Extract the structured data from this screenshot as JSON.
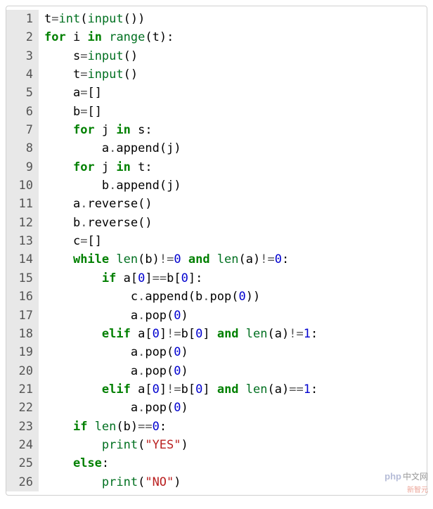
{
  "editor": {
    "background": "#ffffff",
    "gutter_background": "#e8e8e8",
    "gutter_color": "#555555",
    "font_family": "Menlo, Monaco, Consolas, monospace",
    "font_size_pt": 13,
    "colors": {
      "keyword": "#008000",
      "builtin": "#007020",
      "operator": "#555555",
      "number": "#0000cf",
      "string": "#ba2121",
      "default": "#000000"
    },
    "lines": [
      {
        "n": "1",
        "indent": 0,
        "tokens": [
          [
            "name",
            "t"
          ],
          [
            "op",
            "="
          ],
          [
            "builtin",
            "int"
          ],
          [
            "paren",
            "("
          ],
          [
            "builtin",
            "input"
          ],
          [
            "paren",
            "("
          ],
          [
            "paren",
            ")"
          ],
          [
            "paren",
            ")"
          ]
        ]
      },
      {
        "n": "2",
        "indent": 0,
        "tokens": [
          [
            "kw",
            "for"
          ],
          [
            "space",
            " "
          ],
          [
            "name",
            "i"
          ],
          [
            "space",
            " "
          ],
          [
            "kw",
            "in"
          ],
          [
            "space",
            " "
          ],
          [
            "builtin",
            "range"
          ],
          [
            "paren",
            "("
          ],
          [
            "name",
            "t"
          ],
          [
            "paren",
            ")"
          ],
          [
            "punct",
            ":"
          ]
        ]
      },
      {
        "n": "3",
        "indent": 1,
        "tokens": [
          [
            "name",
            "s"
          ],
          [
            "op",
            "="
          ],
          [
            "builtin",
            "input"
          ],
          [
            "paren",
            "("
          ],
          [
            "paren",
            ")"
          ]
        ]
      },
      {
        "n": "4",
        "indent": 1,
        "tokens": [
          [
            "name",
            "t"
          ],
          [
            "op",
            "="
          ],
          [
            "builtin",
            "input"
          ],
          [
            "paren",
            "("
          ],
          [
            "paren",
            ")"
          ]
        ]
      },
      {
        "n": "5",
        "indent": 1,
        "tokens": [
          [
            "name",
            "a"
          ],
          [
            "op",
            "="
          ],
          [
            "paren",
            "["
          ],
          [
            "paren",
            "]"
          ]
        ]
      },
      {
        "n": "6",
        "indent": 1,
        "tokens": [
          [
            "name",
            "b"
          ],
          [
            "op",
            "="
          ],
          [
            "paren",
            "["
          ],
          [
            "paren",
            "]"
          ]
        ]
      },
      {
        "n": "7",
        "indent": 1,
        "tokens": [
          [
            "kw",
            "for"
          ],
          [
            "space",
            " "
          ],
          [
            "name",
            "j"
          ],
          [
            "space",
            " "
          ],
          [
            "kw",
            "in"
          ],
          [
            "space",
            " "
          ],
          [
            "name",
            "s"
          ],
          [
            "punct",
            ":"
          ]
        ]
      },
      {
        "n": "8",
        "indent": 2,
        "tokens": [
          [
            "name",
            "a"
          ],
          [
            "op",
            "."
          ],
          [
            "name",
            "append"
          ],
          [
            "paren",
            "("
          ],
          [
            "name",
            "j"
          ],
          [
            "paren",
            ")"
          ]
        ]
      },
      {
        "n": "9",
        "indent": 1,
        "tokens": [
          [
            "kw",
            "for"
          ],
          [
            "space",
            " "
          ],
          [
            "name",
            "j"
          ],
          [
            "space",
            " "
          ],
          [
            "kw",
            "in"
          ],
          [
            "space",
            " "
          ],
          [
            "name",
            "t"
          ],
          [
            "punct",
            ":"
          ]
        ]
      },
      {
        "n": "10",
        "indent": 2,
        "tokens": [
          [
            "name",
            "b"
          ],
          [
            "op",
            "."
          ],
          [
            "name",
            "append"
          ],
          [
            "paren",
            "("
          ],
          [
            "name",
            "j"
          ],
          [
            "paren",
            ")"
          ]
        ]
      },
      {
        "n": "11",
        "indent": 1,
        "tokens": [
          [
            "name",
            "a"
          ],
          [
            "op",
            "."
          ],
          [
            "name",
            "reverse"
          ],
          [
            "paren",
            "("
          ],
          [
            "paren",
            ")"
          ]
        ]
      },
      {
        "n": "12",
        "indent": 1,
        "tokens": [
          [
            "name",
            "b"
          ],
          [
            "op",
            "."
          ],
          [
            "name",
            "reverse"
          ],
          [
            "paren",
            "("
          ],
          [
            "paren",
            ")"
          ]
        ]
      },
      {
        "n": "13",
        "indent": 1,
        "tokens": [
          [
            "name",
            "c"
          ],
          [
            "op",
            "="
          ],
          [
            "paren",
            "["
          ],
          [
            "paren",
            "]"
          ]
        ]
      },
      {
        "n": "14",
        "indent": 1,
        "tokens": [
          [
            "kw",
            "while"
          ],
          [
            "space",
            " "
          ],
          [
            "builtin",
            "len"
          ],
          [
            "paren",
            "("
          ],
          [
            "name",
            "b"
          ],
          [
            "paren",
            ")"
          ],
          [
            "op",
            "!="
          ],
          [
            "num",
            "0"
          ],
          [
            "space",
            " "
          ],
          [
            "kw",
            "and"
          ],
          [
            "space",
            " "
          ],
          [
            "builtin",
            "len"
          ],
          [
            "paren",
            "("
          ],
          [
            "name",
            "a"
          ],
          [
            "paren",
            ")"
          ],
          [
            "op",
            "!="
          ],
          [
            "num",
            "0"
          ],
          [
            "punct",
            ":"
          ]
        ]
      },
      {
        "n": "15",
        "indent": 2,
        "tokens": [
          [
            "kw",
            "if"
          ],
          [
            "space",
            " "
          ],
          [
            "name",
            "a"
          ],
          [
            "paren",
            "["
          ],
          [
            "num",
            "0"
          ],
          [
            "paren",
            "]"
          ],
          [
            "op",
            "=="
          ],
          [
            "name",
            "b"
          ],
          [
            "paren",
            "["
          ],
          [
            "num",
            "0"
          ],
          [
            "paren",
            "]"
          ],
          [
            "punct",
            ":"
          ]
        ]
      },
      {
        "n": "16",
        "indent": 3,
        "tokens": [
          [
            "name",
            "c"
          ],
          [
            "op",
            "."
          ],
          [
            "name",
            "append"
          ],
          [
            "paren",
            "("
          ],
          [
            "name",
            "b"
          ],
          [
            "op",
            "."
          ],
          [
            "name",
            "pop"
          ],
          [
            "paren",
            "("
          ],
          [
            "num",
            "0"
          ],
          [
            "paren",
            ")"
          ],
          [
            "paren",
            ")"
          ]
        ]
      },
      {
        "n": "17",
        "indent": 3,
        "tokens": [
          [
            "name",
            "a"
          ],
          [
            "op",
            "."
          ],
          [
            "name",
            "pop"
          ],
          [
            "paren",
            "("
          ],
          [
            "num",
            "0"
          ],
          [
            "paren",
            ")"
          ]
        ]
      },
      {
        "n": "18",
        "indent": 2,
        "tokens": [
          [
            "kw",
            "elif"
          ],
          [
            "space",
            " "
          ],
          [
            "name",
            "a"
          ],
          [
            "paren",
            "["
          ],
          [
            "num",
            "0"
          ],
          [
            "paren",
            "]"
          ],
          [
            "op",
            "!="
          ],
          [
            "name",
            "b"
          ],
          [
            "paren",
            "["
          ],
          [
            "num",
            "0"
          ],
          [
            "paren",
            "]"
          ],
          [
            "space",
            " "
          ],
          [
            "kw",
            "and"
          ],
          [
            "space",
            " "
          ],
          [
            "builtin",
            "len"
          ],
          [
            "paren",
            "("
          ],
          [
            "name",
            "a"
          ],
          [
            "paren",
            ")"
          ],
          [
            "op",
            "!="
          ],
          [
            "num",
            "1"
          ],
          [
            "punct",
            ":"
          ]
        ]
      },
      {
        "n": "19",
        "indent": 3,
        "tokens": [
          [
            "name",
            "a"
          ],
          [
            "op",
            "."
          ],
          [
            "name",
            "pop"
          ],
          [
            "paren",
            "("
          ],
          [
            "num",
            "0"
          ],
          [
            "paren",
            ")"
          ]
        ]
      },
      {
        "n": "20",
        "indent": 3,
        "tokens": [
          [
            "name",
            "a"
          ],
          [
            "op",
            "."
          ],
          [
            "name",
            "pop"
          ],
          [
            "paren",
            "("
          ],
          [
            "num",
            "0"
          ],
          [
            "paren",
            ")"
          ]
        ]
      },
      {
        "n": "21",
        "indent": 2,
        "tokens": [
          [
            "kw",
            "elif"
          ],
          [
            "space",
            " "
          ],
          [
            "name",
            "a"
          ],
          [
            "paren",
            "["
          ],
          [
            "num",
            "0"
          ],
          [
            "paren",
            "]"
          ],
          [
            "op",
            "!="
          ],
          [
            "name",
            "b"
          ],
          [
            "paren",
            "["
          ],
          [
            "num",
            "0"
          ],
          [
            "paren",
            "]"
          ],
          [
            "space",
            " "
          ],
          [
            "kw",
            "and"
          ],
          [
            "space",
            " "
          ],
          [
            "builtin",
            "len"
          ],
          [
            "paren",
            "("
          ],
          [
            "name",
            "a"
          ],
          [
            "paren",
            ")"
          ],
          [
            "op",
            "=="
          ],
          [
            "num",
            "1"
          ],
          [
            "punct",
            ":"
          ]
        ]
      },
      {
        "n": "22",
        "indent": 3,
        "tokens": [
          [
            "name",
            "a"
          ],
          [
            "op",
            "."
          ],
          [
            "name",
            "pop"
          ],
          [
            "paren",
            "("
          ],
          [
            "num",
            "0"
          ],
          [
            "paren",
            ")"
          ]
        ]
      },
      {
        "n": "23",
        "indent": 1,
        "tokens": [
          [
            "kw",
            "if"
          ],
          [
            "space",
            " "
          ],
          [
            "builtin",
            "len"
          ],
          [
            "paren",
            "("
          ],
          [
            "name",
            "b"
          ],
          [
            "paren",
            ")"
          ],
          [
            "op",
            "=="
          ],
          [
            "num",
            "0"
          ],
          [
            "punct",
            ":"
          ]
        ]
      },
      {
        "n": "24",
        "indent": 2,
        "tokens": [
          [
            "builtin",
            "print"
          ],
          [
            "paren",
            "("
          ],
          [
            "str",
            "\"YES\""
          ],
          [
            "paren",
            ")"
          ]
        ]
      },
      {
        "n": "25",
        "indent": 1,
        "tokens": [
          [
            "kw",
            "else"
          ],
          [
            "punct",
            ":"
          ]
        ]
      },
      {
        "n": "26",
        "indent": 2,
        "tokens": [
          [
            "builtin",
            "print"
          ],
          [
            "paren",
            "("
          ],
          [
            "str",
            "\"NO\""
          ],
          [
            "paren",
            ")"
          ]
        ]
      }
    ],
    "indent_string": "    "
  },
  "watermark": {
    "php": "php",
    "cn": "中文网",
    "sub": "新智元"
  }
}
